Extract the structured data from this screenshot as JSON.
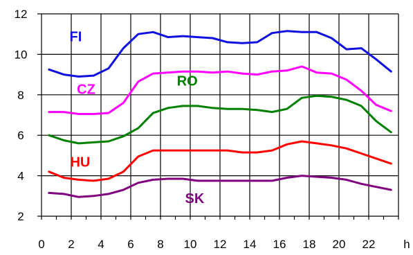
{
  "chart_data": {
    "type": "line",
    "xlabel_unit": "h",
    "x_ticks": [
      "0",
      "2",
      "4",
      "6",
      "8",
      "10",
      "12",
      "14",
      "16",
      "18",
      "20",
      "22"
    ],
    "y_ticks": [
      "2",
      "4",
      "6",
      "8",
      "10",
      "12"
    ],
    "xlim": [
      0,
      24
    ],
    "ylim": [
      2,
      12
    ],
    "grid": true,
    "x": [
      0.5,
      1.5,
      2.5,
      3.5,
      4.5,
      5.5,
      6.5,
      7.5,
      8.5,
      9.5,
      10.5,
      11.5,
      12.5,
      13.5,
      14.5,
      15.5,
      16.5,
      17.5,
      18.5,
      19.5,
      20.5,
      21.5,
      22.5,
      23.5
    ],
    "series": [
      {
        "name": "FI",
        "color": "#1010e0",
        "values": [
          9.25,
          9.0,
          8.9,
          8.95,
          9.3,
          10.3,
          11.0,
          11.1,
          10.85,
          10.9,
          10.85,
          10.8,
          10.6,
          10.55,
          10.6,
          11.05,
          11.15,
          11.1,
          11.1,
          10.8,
          10.25,
          10.3,
          9.75,
          9.15
        ]
      },
      {
        "name": "CZ",
        "color": "#ff00ff",
        "values": [
          7.15,
          7.15,
          7.05,
          7.05,
          7.1,
          7.6,
          8.65,
          9.05,
          9.1,
          9.15,
          9.15,
          9.1,
          9.15,
          9.05,
          9.0,
          9.15,
          9.2,
          9.4,
          9.1,
          9.05,
          8.75,
          8.2,
          7.5,
          7.2
        ]
      },
      {
        "name": "RO",
        "color": "#008000",
        "values": [
          6.0,
          5.75,
          5.6,
          5.65,
          5.7,
          5.95,
          6.35,
          7.1,
          7.35,
          7.45,
          7.45,
          7.35,
          7.3,
          7.3,
          7.25,
          7.15,
          7.3,
          7.85,
          7.95,
          7.9,
          7.75,
          7.45,
          6.7,
          6.15
        ]
      },
      {
        "name": "HU",
        "color": "#ff0000",
        "values": [
          4.2,
          3.9,
          3.8,
          3.75,
          3.85,
          4.2,
          4.95,
          5.25,
          5.25,
          5.25,
          5.25,
          5.25,
          5.25,
          5.15,
          5.15,
          5.25,
          5.55,
          5.7,
          5.6,
          5.5,
          5.35,
          5.1,
          4.85,
          4.6
        ]
      },
      {
        "name": "SK",
        "color": "#800080",
        "values": [
          3.15,
          3.1,
          2.95,
          3.0,
          3.1,
          3.3,
          3.65,
          3.8,
          3.85,
          3.85,
          3.75,
          3.75,
          3.75,
          3.75,
          3.75,
          3.75,
          3.9,
          4.0,
          3.95,
          3.9,
          3.8,
          3.6,
          3.45,
          3.3
        ]
      }
    ]
  }
}
